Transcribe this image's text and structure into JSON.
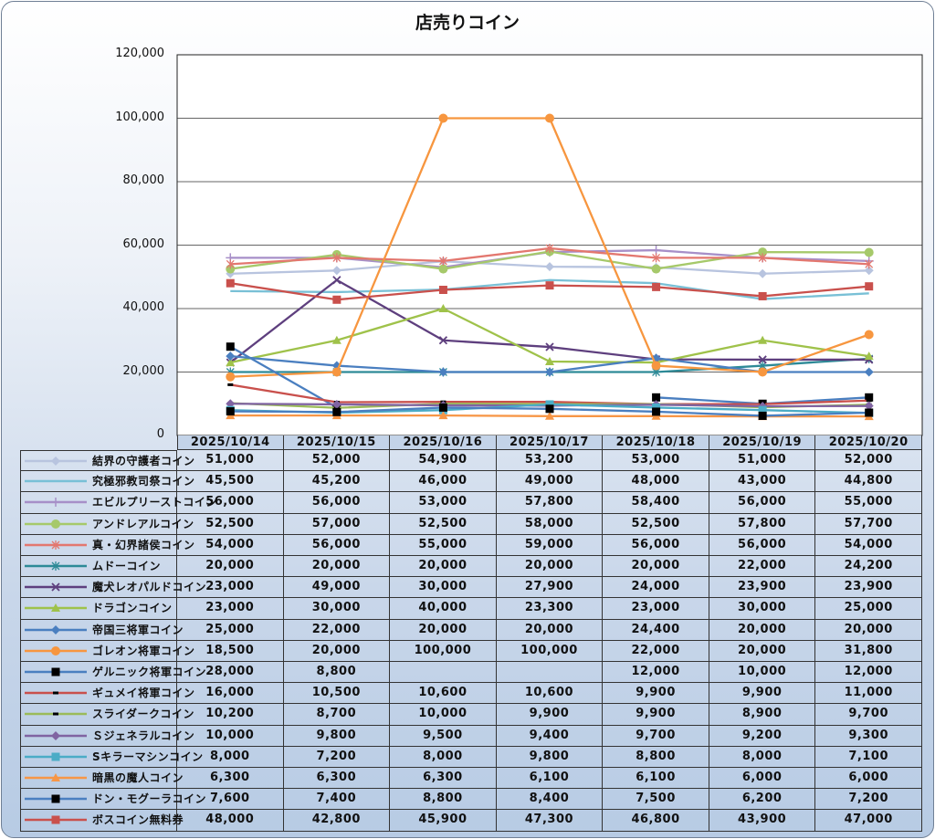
{
  "chart_data": {
    "type": "line",
    "title": "店売りコイン",
    "categories": [
      "2025/10/14",
      "2025/10/15",
      "2025/10/16",
      "2025/10/17",
      "2025/10/18",
      "2025/10/19",
      "2025/10/20"
    ],
    "ylim": [
      0,
      120000
    ],
    "yticks": [
      0,
      20000,
      40000,
      60000,
      80000,
      100000,
      120000
    ],
    "ytick_labels": [
      "0",
      "20,000",
      "40,000",
      "60,000",
      "80,000",
      "100,000",
      "120,000"
    ],
    "grid": true,
    "legend": "data-table",
    "series": [
      {
        "name": "結界の守護者コイン",
        "color": "#b8c4df",
        "marker": "diamond",
        "marker_color": "#b8c4df",
        "values": [
          51000,
          52000,
          54900,
          53200,
          53000,
          51000,
          52000
        ]
      },
      {
        "name": "究極邪教司祭コイン",
        "color": "#79c0d6",
        "marker": "none",
        "marker_color": "#79c0d6",
        "values": [
          45500,
          45200,
          46000,
          49000,
          48000,
          43000,
          44800
        ]
      },
      {
        "name": "エビルプリーストコイン",
        "color": "#a78fc8",
        "marker": "plus",
        "marker_color": "#a78fc8",
        "values": [
          56000,
          56000,
          53000,
          57800,
          58400,
          56000,
          55000
        ]
      },
      {
        "name": "アンドレアルコイン",
        "color": "#a6c96a",
        "marker": "circle",
        "marker_color": "#a6c96a",
        "values": [
          52500,
          57000,
          52500,
          58000,
          52500,
          57800,
          57700
        ]
      },
      {
        "name": "真・幻界諸侯コイン",
        "color": "#e3776f",
        "marker": "star",
        "marker_color": "#e3776f",
        "values": [
          54000,
          56000,
          55000,
          59000,
          56000,
          56000,
          54000
        ]
      },
      {
        "name": "ムドーコイン",
        "color": "#2d8a97",
        "marker": "star",
        "marker_color": "#2d8a97",
        "values": [
          20000,
          20000,
          20000,
          20000,
          20000,
          22000,
          24200
        ]
      },
      {
        "name": "魔犬レオパルドコイン",
        "color": "#5e3f7e",
        "marker": "x",
        "marker_color": "#5e3f7e",
        "values": [
          23000,
          49000,
          30000,
          27900,
          24000,
          23900,
          23900
        ]
      },
      {
        "name": "ドラゴンコイン",
        "color": "#9fc24a",
        "marker": "triangle",
        "marker_color": "#9fc24a",
        "values": [
          23000,
          30000,
          40000,
          23300,
          23000,
          30000,
          25000
        ]
      },
      {
        "name": "帝国三将軍コイン",
        "color": "#4a7fc0",
        "marker": "diamond",
        "marker_color": "#4a7fc0",
        "values": [
          25000,
          22000,
          20000,
          20000,
          24400,
          20000,
          20000
        ]
      },
      {
        "name": "ゴレオン将軍コイン",
        "color": "#f7963f",
        "marker": "circle",
        "marker_color": "#f7963f",
        "values": [
          18500,
          20000,
          100000,
          100000,
          22000,
          20000,
          31800
        ]
      },
      {
        "name": "ゲルニック将軍コイン",
        "color": "#4a7fc0",
        "marker": "square",
        "marker_color": "#000000",
        "values": [
          28000,
          8800,
          null,
          null,
          12000,
          10000,
          12000
        ]
      },
      {
        "name": "ギュメイ将軍コイン",
        "color": "#c9504c",
        "marker": "dash",
        "marker_color": "#000000",
        "values": [
          16000,
          10500,
          10600,
          10600,
          9900,
          9900,
          11000
        ]
      },
      {
        "name": "スライダークコイン",
        "color": "#9bbb59",
        "marker": "dash",
        "marker_color": "#000000",
        "values": [
          10200,
          8700,
          10000,
          9900,
          9900,
          8900,
          9700
        ]
      },
      {
        "name": "Ｓジェネラルコイン",
        "color": "#8064a2",
        "marker": "diamond",
        "marker_color": "#8064a2",
        "values": [
          10000,
          9800,
          9500,
          9400,
          9700,
          9200,
          9300
        ]
      },
      {
        "name": "Sキラーマシンコイン",
        "color": "#4bacc6",
        "marker": "square",
        "marker_color": "#4bacc6",
        "values": [
          8000,
          7200,
          8000,
          9800,
          8800,
          8000,
          7100
        ]
      },
      {
        "name": "暗黒の魔人コイン",
        "color": "#f79646",
        "marker": "triangle",
        "marker_color": "#f79646",
        "values": [
          6300,
          6300,
          6300,
          6100,
          6100,
          6000,
          6000
        ]
      },
      {
        "name": "ドン・モグーラコイン",
        "color": "#4a7fc0",
        "marker": "square",
        "marker_color": "#000000",
        "values": [
          7600,
          7400,
          8800,
          8400,
          7500,
          6200,
          7200
        ]
      },
      {
        "name": "ボスコイン無料券",
        "color": "#c9504c",
        "marker": "square",
        "marker_color": "#c9504c",
        "values": [
          48000,
          42800,
          45900,
          47300,
          46800,
          43900,
          47000
        ]
      }
    ]
  }
}
